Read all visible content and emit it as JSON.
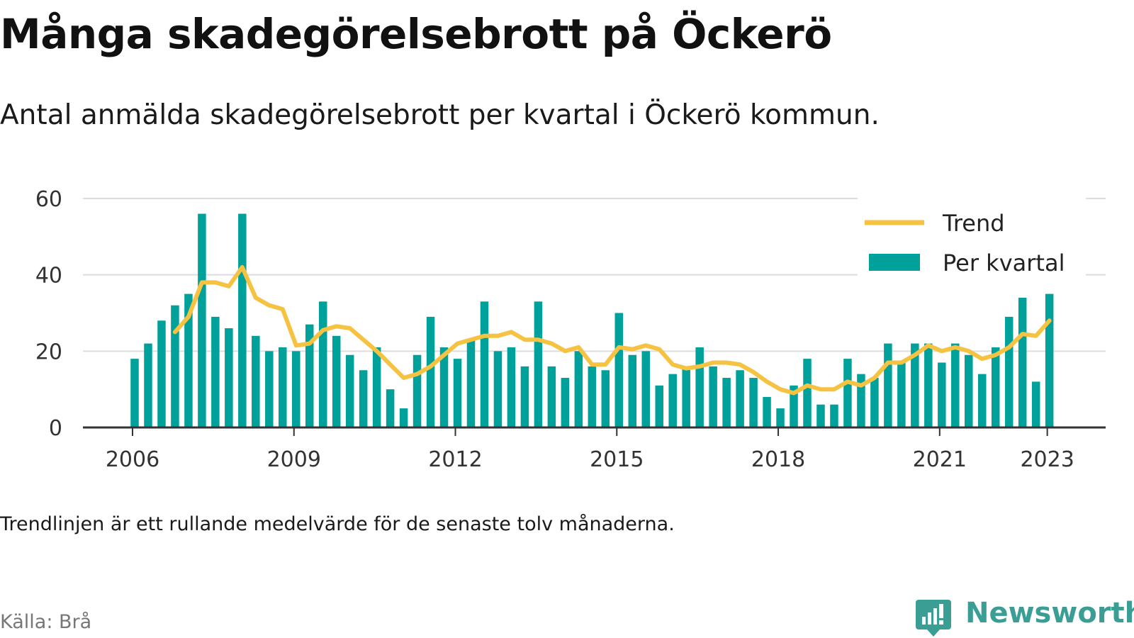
{
  "title": "Många skadegörelsebrott på Öckerö",
  "subtitle": "Antal anmälda skadegörelsebrott per kvartal i Öckerö kommun.",
  "note": "Trendlinjen är ett rullande medelvärde för de senaste tolv månaderna.",
  "source": "Källa: Brå",
  "brand": {
    "name": "Newsworthy",
    "icon": "newsworthy-logo-icon",
    "color": "#3a9e95"
  },
  "colors": {
    "bars": "#00a19a",
    "trend": "#f5c242",
    "grid": "#dddddd",
    "axis": "#333333"
  },
  "chart_data": {
    "type": "bar",
    "x": [
      "2006-01",
      "2006-04",
      "2006-07",
      "2006-10",
      "2007-01",
      "2007-04",
      "2007-07",
      "2007-10",
      "2008-01",
      "2008-04",
      "2008-07",
      "2008-10",
      "2009-01",
      "2009-04",
      "2009-07",
      "2009-10",
      "2010-01",
      "2010-04",
      "2010-07",
      "2010-10",
      "2011-01",
      "2011-04",
      "2011-07",
      "2011-10",
      "2012-01",
      "2012-04",
      "2012-07",
      "2012-10",
      "2013-01",
      "2013-04",
      "2013-07",
      "2013-10",
      "2014-01",
      "2014-04",
      "2014-07",
      "2014-10",
      "2015-01",
      "2015-04",
      "2015-07",
      "2015-10",
      "2016-01",
      "2016-04",
      "2016-07",
      "2016-10",
      "2017-01",
      "2017-04",
      "2017-07",
      "2017-10",
      "2018-01",
      "2018-04",
      "2018-07",
      "2018-10",
      "2019-01",
      "2019-04",
      "2019-07",
      "2019-10",
      "2020-01",
      "2020-04",
      "2020-07",
      "2020-10",
      "2021-01",
      "2021-04",
      "2021-07",
      "2021-10",
      "2022-01",
      "2022-04",
      "2022-07",
      "2022-10",
      "2023-01"
    ],
    "series": [
      {
        "name": "Per kvartal",
        "type": "bar",
        "values": [
          18,
          22,
          28,
          32,
          35,
          56,
          29,
          26,
          56,
          24,
          20,
          21,
          20,
          27,
          33,
          24,
          19,
          15,
          21,
          10,
          5,
          19,
          29,
          21,
          18,
          23,
          33,
          20,
          21,
          16,
          33,
          16,
          13,
          20,
          16,
          15,
          30,
          19,
          20,
          11,
          14,
          16,
          21,
          16,
          13,
          15,
          13,
          8,
          5,
          11,
          18,
          6,
          6,
          18,
          14,
          13,
          22,
          17,
          22,
          22,
          17,
          22,
          19,
          14,
          21,
          29,
          34,
          12,
          35
        ]
      },
      {
        "name": "Trend",
        "type": "line",
        "values": [
          null,
          null,
          null,
          25,
          29,
          38,
          38,
          37,
          42,
          34,
          32,
          31,
          21.5,
          22,
          25.5,
          26.5,
          26,
          23,
          20,
          16.5,
          13,
          14,
          16,
          19,
          22,
          23,
          24,
          24,
          25,
          23,
          23,
          22,
          20,
          21,
          16.5,
          16.5,
          21,
          20.5,
          21.5,
          20.5,
          16.5,
          15.5,
          16,
          17,
          17,
          16.5,
          14.5,
          12,
          10,
          9,
          11,
          10,
          10,
          12,
          11,
          13,
          17,
          17,
          19,
          21.5,
          20,
          21,
          20,
          18,
          19,
          21,
          24.5,
          24,
          28
        ]
      }
    ],
    "x_ticks": [
      "2006",
      "2009",
      "2012",
      "2015",
      "2018",
      "2021",
      "2023"
    ],
    "y_ticks": [
      0,
      20,
      40,
      60
    ],
    "ylim": [
      0,
      60
    ],
    "legend": {
      "placement": "top-right",
      "entries": [
        "Trend",
        "Per kvartal"
      ]
    },
    "grid": true
  }
}
